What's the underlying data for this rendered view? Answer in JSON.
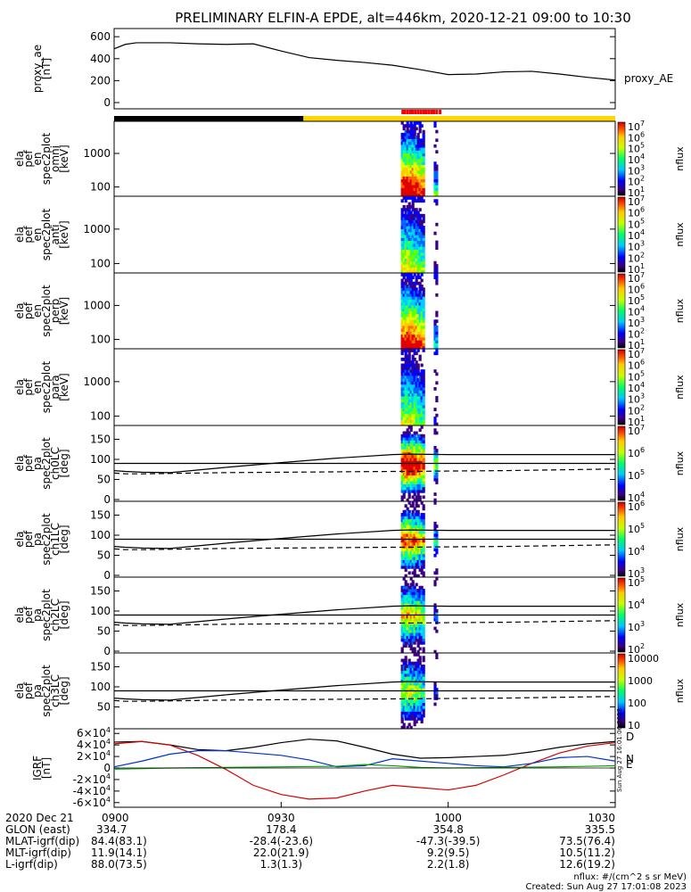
{
  "title": "PRELIMINARY ELFIN-A EPDE, alt=446km, 2020-12-21 09:00 to 10:30",
  "footer": {
    "units": "nflux: #/(cm^2 s sr MeV)",
    "created": "Created: Sun Aug 27 17:01:08 2023",
    "side_stamp": "Sun Aug 27 16:01:06 2023"
  },
  "time_axis": {
    "start_min": 0,
    "end_min": 90,
    "ticks": [
      {
        "min": 0,
        "label": "0900"
      },
      {
        "min": 30,
        "label": "0930"
      },
      {
        "min": 60,
        "label": "1000"
      },
      {
        "min": 90,
        "label": "1030"
      }
    ]
  },
  "ephemeris": {
    "rows": [
      {
        "label": "2020 Dec 21",
        "values": [
          "0900",
          "",
          "",
          ""
        ]
      },
      {
        "label": "GLON (east)",
        "values": [
          "334.7",
          "178.4",
          "354.8",
          "335.5"
        ]
      },
      {
        "label": "MLAT-igrf(dip)",
        "values": [
          "84.4(83.1)",
          "-28.4(-23.6)",
          "-47.3(-39.5)",
          "73.5(76.4)"
        ]
      },
      {
        "label": "MLT-igrf(dip)",
        "values": [
          "11.9(14.1)",
          "22.0(21.9)",
          "9.2(9.5)",
          "10.5(11.2)"
        ]
      },
      {
        "label": "L-igrf(dip)",
        "values": [
          "88.0(73.5)",
          "1.3(1.3)",
          "2.2(1.8)",
          "12.6(19.2)"
        ]
      }
    ]
  },
  "status_bar": {
    "segments": [
      {
        "from": 0,
        "to": 34,
        "color": "#000000"
      },
      {
        "from": 34,
        "to": 90,
        "color": "#ffd700"
      }
    ],
    "science_marks": [
      51.6,
      52.0,
      52.5,
      53.0,
      53.4,
      53.9,
      54.4,
      54.9,
      55.4,
      55.8,
      56.3,
      56.8,
      57.2,
      57.7,
      58.3
    ]
  },
  "panels": [
    {
      "id": "proxy_ae",
      "ylabel": [
        "proxy_ae",
        "[nT]"
      ],
      "yticks": [
        {
          "v": 0,
          "t": "0"
        },
        {
          "v": 200,
          "t": "200"
        },
        {
          "v": 400,
          "t": "400"
        },
        {
          "v": 600,
          "t": "600"
        }
      ],
      "legend": "proxy_AE"
    },
    {
      "id": "omni",
      "ylabel": [
        "ela",
        "pef",
        "en",
        "spec2plot",
        "omni",
        "[keV]"
      ],
      "yticks": [
        {
          "v": 100,
          "t": "100"
        },
        {
          "v": 1000,
          "t": "1000"
        }
      ],
      "colorbar": {
        "labels": [
          "10^1",
          "10^2",
          "10^3",
          "10^4",
          "10^5",
          "10^6",
          "10^7"
        ],
        "unit": "nflux"
      }
    },
    {
      "id": "anti",
      "ylabel": [
        "ela",
        "pef",
        "en",
        "spec2plot",
        "anti",
        "[keV]"
      ],
      "yticks": [
        {
          "v": 100,
          "t": "100"
        },
        {
          "v": 1000,
          "t": "1000"
        }
      ],
      "colorbar": {
        "labels": [
          "10^1",
          "10^2",
          "10^3",
          "10^4",
          "10^5",
          "10^6",
          "10^7"
        ],
        "unit": "nflux"
      }
    },
    {
      "id": "perp",
      "ylabel": [
        "ela",
        "pef",
        "en",
        "spec2plot",
        "perp",
        "[keV]"
      ],
      "yticks": [
        {
          "v": 100,
          "t": "100"
        },
        {
          "v": 1000,
          "t": "1000"
        }
      ],
      "colorbar": {
        "labels": [
          "10^1",
          "10^2",
          "10^3",
          "10^4",
          "10^5",
          "10^6",
          "10^7"
        ],
        "unit": "nflux"
      }
    },
    {
      "id": "para",
      "ylabel": [
        "ela",
        "pef",
        "en",
        "spec2plot",
        "para",
        "[keV]"
      ],
      "yticks": [
        {
          "v": 100,
          "t": "100"
        },
        {
          "v": 1000,
          "t": "1000"
        }
      ],
      "colorbar": {
        "labels": [
          "10^1",
          "10^2",
          "10^3",
          "10^4",
          "10^5",
          "10^6",
          "10^7"
        ],
        "unit": "nflux"
      }
    },
    {
      "id": "ch0LC",
      "ylabel": [
        "ela",
        "pef",
        "pa",
        "spec2plot",
        "ch0LC",
        "[deg]"
      ],
      "yticks": [
        {
          "v": 0,
          "t": "0"
        },
        {
          "v": 50,
          "t": "50"
        },
        {
          "v": 100,
          "t": "100"
        },
        {
          "v": 150,
          "t": "150"
        }
      ],
      "colorbar": {
        "labels": [
          "10^4",
          "10^5",
          "10^6",
          "10^7"
        ],
        "unit": "nflux"
      }
    },
    {
      "id": "ch1LC",
      "ylabel": [
        "ela",
        "pef",
        "pa",
        "spec2plot",
        "ch1LC",
        "[deg]"
      ],
      "yticks": [
        {
          "v": 0,
          "t": "0"
        },
        {
          "v": 50,
          "t": "50"
        },
        {
          "v": 100,
          "t": "100"
        },
        {
          "v": 150,
          "t": "150"
        }
      ],
      "colorbar": {
        "labels": [
          "10^3",
          "10^4",
          "10^5",
          "10^6"
        ],
        "unit": "nflux"
      }
    },
    {
      "id": "ch2LC",
      "ylabel": [
        "ela",
        "pef",
        "pa",
        "spec2plot",
        "ch2LC",
        "[deg]"
      ],
      "yticks": [
        {
          "v": 0,
          "t": "0"
        },
        {
          "v": 50,
          "t": "50"
        },
        {
          "v": 100,
          "t": "100"
        },
        {
          "v": 150,
          "t": "150"
        }
      ],
      "colorbar": {
        "labels": [
          "10^2",
          "10^3",
          "10^4",
          "10^5"
        ],
        "unit": "nflux"
      }
    },
    {
      "id": "ch3LC",
      "ylabel": [
        "ela",
        "pef",
        "pa",
        "spec2plot",
        "ch3LC",
        "[deg]"
      ],
      "yticks": [
        {
          "v": 50,
          "t": "50"
        },
        {
          "v": 100,
          "t": "100"
        },
        {
          "v": 150,
          "t": "150"
        }
      ],
      "colorbar": {
        "labels": [
          "10",
          "100",
          "1000",
          "10000"
        ],
        "unit": "nflux"
      }
    },
    {
      "id": "igrf",
      "ylabel": [
        "IGRF",
        "[nT]"
      ],
      "yticks": [
        {
          "v": -60000,
          "t": "-6×10^4"
        },
        {
          "v": -40000,
          "t": "-4×10^4"
        },
        {
          "v": -20000,
          "t": "-2×10^4"
        },
        {
          "v": 0,
          "t": "0"
        },
        {
          "v": 20000,
          "t": "2×10^4"
        },
        {
          "v": 40000,
          "t": "4×10^4"
        },
        {
          "v": 60000,
          "t": "6×10^4"
        }
      ],
      "legend": [
        {
          "name": "D",
          "color": "#d40000"
        },
        {
          "name": "N",
          "color": "#0033cc"
        },
        {
          "name": "E",
          "color": "#00a000"
        }
      ]
    }
  ],
  "chart_data": {
    "type": "line",
    "title": "PRELIMINARY ELFIN-A EPDE, alt=446km, 2020-12-21 09:00 to 10:30",
    "x_unit_minutes_from": "09:00",
    "series": [
      {
        "name": "proxy_AE",
        "x": [
          0,
          2,
          4,
          10,
          15,
          20,
          25,
          30,
          35,
          40,
          45,
          50,
          55,
          60,
          65,
          70,
          75,
          80,
          85,
          90
        ],
        "values": [
          490,
          530,
          545,
          545,
          535,
          530,
          535,
          470,
          410,
          385,
          365,
          340,
          300,
          255,
          260,
          280,
          285,
          260,
          230,
          205
        ]
      },
      {
        "name": "D",
        "x": [
          0,
          5,
          10,
          15,
          20,
          25,
          30,
          35,
          40,
          45,
          50,
          55,
          60,
          65,
          70,
          75,
          80,
          85,
          90
        ],
        "values": [
          42000,
          46000,
          40000,
          22000,
          -2000,
          -30000,
          -46000,
          -54000,
          -52000,
          -40000,
          -30000,
          -34000,
          -38000,
          -30000,
          -12000,
          8000,
          26000,
          38000,
          44000
        ]
      },
      {
        "name": "N",
        "x": [
          0,
          5,
          10,
          15,
          20,
          25,
          30,
          35,
          40,
          45,
          50,
          55,
          60,
          65,
          70,
          75,
          80,
          85,
          90
        ],
        "values": [
          2000,
          12000,
          24000,
          30000,
          30000,
          26000,
          22000,
          14000,
          2000,
          4000,
          16000,
          12000,
          8000,
          4000,
          2000,
          8000,
          18000,
          20000,
          12000
        ]
      },
      {
        "name": "E",
        "x": [
          0,
          10,
          20,
          30,
          40,
          45,
          50,
          55,
          60,
          70,
          80,
          90
        ],
        "values": [
          -2000,
          0,
          1000,
          2000,
          3000,
          6000,
          4000,
          1000,
          0,
          1000,
          2000,
          4000
        ]
      },
      {
        "name": "B total",
        "x": [
          0,
          5,
          10,
          15,
          20,
          25,
          30,
          35,
          40,
          45,
          50,
          55,
          60,
          65,
          70,
          75,
          80,
          85,
          90
        ],
        "values": [
          45000,
          46000,
          40000,
          32000,
          30000,
          36000,
          44000,
          50000,
          47000,
          36000,
          24000,
          17000,
          18000,
          20000,
          22000,
          28000,
          36000,
          42000,
          46000
        ]
      },
      {
        "name": "ch0LC loss cone (solid)",
        "x": [
          0,
          2,
          5,
          10,
          20,
          30,
          40,
          50,
          53,
          60,
          70,
          80,
          90
        ],
        "values": [
          72,
          70,
          68,
          67,
          80,
          92,
          103,
          112,
          113,
          112,
          112,
          112,
          112
        ]
      },
      {
        "name": "ch0LC anti-loss cone (dashed)",
        "x": [
          0,
          2,
          5,
          10,
          20,
          30,
          40,
          50,
          53,
          60,
          70,
          80,
          90
        ],
        "values": [
          66,
          64,
          64,
          65,
          67,
          68,
          69,
          70,
          70,
          71,
          72,
          74,
          76
        ]
      },
      {
        "name": "90 deg reference",
        "x": [
          0,
          90
        ],
        "values": [
          90,
          90
        ]
      }
    ],
    "ylim_ae": [
      0,
      650
    ],
    "ylim_energy_keV": [
      60,
      8000
    ],
    "ylim_pitch_deg": [
      0,
      180
    ],
    "ylim_igrf": [
      -65000,
      65000
    ]
  }
}
